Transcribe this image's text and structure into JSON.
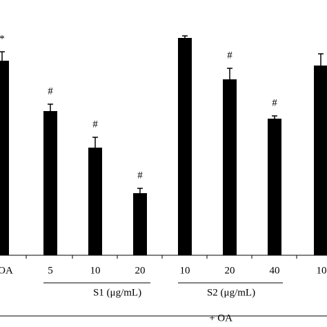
{
  "chart_data": {
    "type": "bar",
    "categories": [
      "OA",
      "5",
      "10",
      "20",
      "10",
      "20",
      "40",
      "10"
    ],
    "values": [
      282,
      209,
      156,
      90,
      315,
      255,
      198,
      275
    ],
    "errors": [
      13,
      10,
      15,
      7,
      3,
      16,
      4,
      17
    ],
    "annotations": [
      "*",
      "#",
      "#",
      "#",
      null,
      "#",
      "#",
      null
    ],
    "groups": [
      "S1 (μg/mL)",
      "S2 (μg/mL)"
    ],
    "footer": "+ OA",
    "color": "#000000",
    "ylim": [
      0,
      370
    ]
  }
}
